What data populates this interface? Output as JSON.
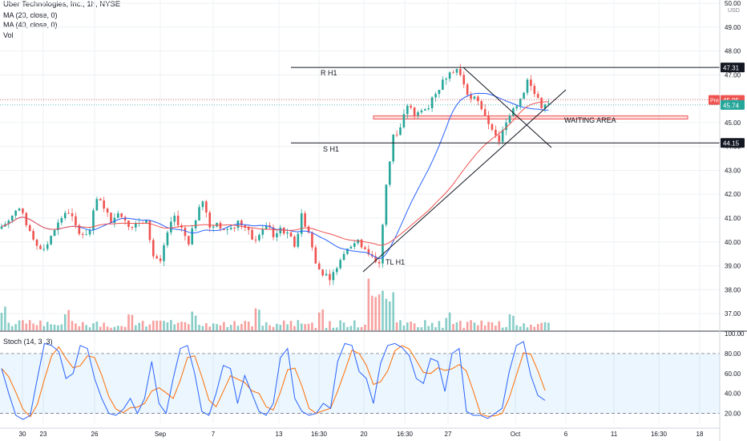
{
  "chart_data": {
    "type": "candlestick",
    "title": "Uber Technologies, Inc., 1h, NYSE",
    "legend": [
      {
        "label": "MA (20, close, 0)",
        "color": "#2962ff"
      },
      {
        "label": "MA (40, close, 0)",
        "color": "#ef5350"
      },
      {
        "label": "Vol",
        "color": ""
      }
    ],
    "currency_label": "USD",
    "price_axis": {
      "range": [
        36.5,
        50.0
      ],
      "ticks": [
        "50.00",
        "49.00",
        "48.00",
        "47.00",
        "45.00",
        "44.00",
        "43.00",
        "42.00",
        "41.00",
        "40.00",
        "39.00",
        "38.00",
        "37.00"
      ]
    },
    "price_badges": [
      {
        "text": "47.31",
        "color": "#131722"
      },
      {
        "text": "45.95",
        "color": "#ef5350"
      },
      {
        "text": "45.74",
        "color": "#26a69a"
      },
      {
        "text": "44.15",
        "color": "#131722"
      }
    ],
    "pre_label": "Pre",
    "x_ticks": [
      "30",
      "23",
      "26",
      "Sep",
      "7",
      "13",
      "16:30",
      "20",
      "16:30",
      "27",
      "Oct",
      "6",
      "11",
      "16:30",
      "18"
    ],
    "levels": [
      {
        "label": "R H1",
        "price": 47.31
      },
      {
        "label": "S H1",
        "price": 44.15
      }
    ],
    "trendline_label": "TL H1",
    "zone_label": "WAITING AREA",
    "zone": [
      45.15,
      45.28
    ],
    "close_path": [
      40.75,
      41.1,
      41.4,
      40.7,
      40.1,
      39.7,
      39.9,
      40.5,
      41.0,
      41.2,
      40.7,
      40.3,
      40.5,
      41.8,
      41.4,
      40.8,
      41.2,
      40.9,
      40.6,
      40.8,
      40.9,
      39.4,
      39.2,
      40.4,
      41.1,
      40.6,
      39.9,
      40.9,
      41.7,
      40.6,
      40.8,
      40.5,
      40.6,
      40.9,
      40.6,
      40.1,
      40.3,
      40.7,
      40.2,
      40.6,
      40.4,
      39.8,
      41.2,
      40.4,
      39.1,
      38.6,
      38.4,
      38.9,
      39.5,
      39.8,
      40.1,
      39.7,
      39.4,
      39.1,
      42.4,
      44.5,
      44.8,
      45.7,
      45.3,
      45.5,
      45.6,
      46.2,
      46.8,
      47.1,
      47.25,
      46.6,
      46.0,
      45.9,
      45.3,
      44.7,
      44.2,
      45.0,
      45.6,
      46.0,
      46.8,
      46.2,
      45.6,
      45.8
    ],
    "stoch_label": "Stoch (14, 3, 3)",
    "stoch_axis": {
      "range": [
        10,
        100
      ],
      "ticks": [
        "100.00",
        "80.00",
        "60.00",
        "40.00",
        "20.00"
      ],
      "band": [
        20,
        80
      ]
    },
    "stoch_k_path": [
      65,
      40,
      18,
      14,
      18,
      55,
      90,
      88,
      82,
      55,
      60,
      88,
      85,
      55,
      35,
      20,
      18,
      24,
      35,
      20,
      35,
      72,
      30,
      20,
      55,
      85,
      88,
      60,
      22,
      18,
      40,
      68,
      65,
      30,
      58,
      40,
      22,
      18,
      30,
      76,
      85,
      35,
      22,
      18,
      20,
      30,
      25,
      72,
      90,
      88,
      62,
      55,
      30,
      70,
      88,
      90,
      86,
      78,
      55,
      50,
      75,
      72,
      42,
      80,
      85,
      22,
      18,
      18,
      15,
      20,
      25,
      62,
      88,
      92,
      58,
      38,
      33
    ]
  }
}
